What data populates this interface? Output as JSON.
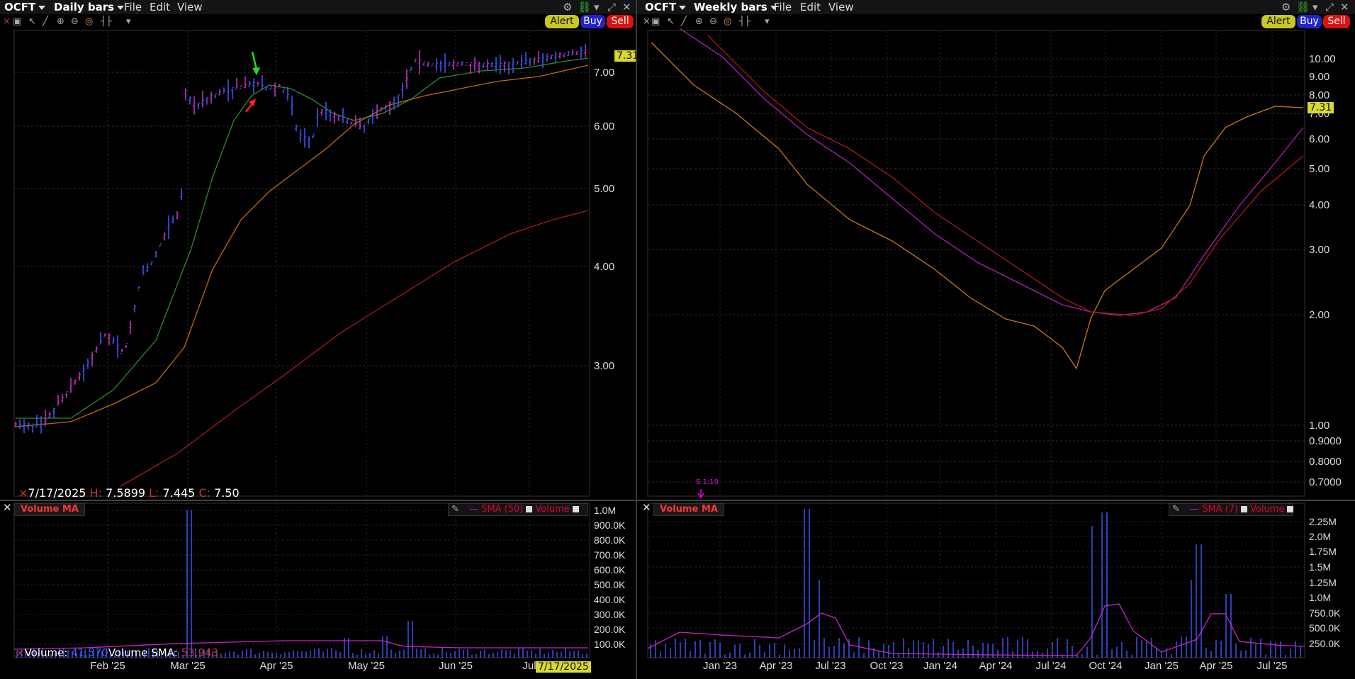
{
  "left": {
    "symbol": "OCFT",
    "bar_type": "Daily bars",
    "menu": [
      "File",
      "Edit",
      "View"
    ],
    "buttons": {
      "alert": "Alert",
      "buy": "Buy",
      "sell": "Sell"
    },
    "price_axis": [
      "7.00",
      "6.00",
      "5.00",
      "4.00",
      "3.00"
    ],
    "last_price": "7.31",
    "info_line": {
      "date": "7/17/2025",
      "h_label": "H:",
      "h": "7.5899",
      "l_label": "L:",
      "l": "7.445",
      "c_label": "C:",
      "c": "7.50"
    },
    "volume_panel": {
      "title": "Volume MA",
      "legend": {
        "sma": "SMA (50)",
        "volume": "Volume"
      },
      "axis": [
        "1.0M",
        "900.0K",
        "800.0K",
        "700.0K",
        "600.0K",
        "500.0K",
        "400.0K",
        "300.0K",
        "200.0K",
        "100.0K"
      ],
      "readout": {
        "vol_label": "Volume:",
        "vol": "41,570",
        "sma_label": "Volume SMA:",
        "sma": "53,943"
      }
    },
    "time_axis": [
      "Feb '25",
      "Mar '25",
      "Apr '25",
      "May '25",
      "Jun '25",
      "Jul"
    ],
    "date_flag": "7/17/2025",
    "colors": {
      "bar_up": "#3d5bff",
      "bar_down": "#cc33cc",
      "ma_short": "#2e8b2e",
      "ma_mid": "#c06a10",
      "ma_long": "#b01818",
      "annotation_green": "#22dd22",
      "annotation_red": "#ff2222"
    }
  },
  "right": {
    "symbol": "OCFT",
    "bar_type": "Weekly bars",
    "menu": [
      "File",
      "Edit",
      "View"
    ],
    "buttons": {
      "alert": "Alert",
      "buy": "Buy",
      "sell": "Sell"
    },
    "price_axis": [
      "10.00",
      "9.00",
      "8.00",
      "7.00",
      "6.00",
      "5.00",
      "4.00",
      "3.00",
      "2.00",
      "1.00",
      "0.9000",
      "0.8000",
      "0.7000"
    ],
    "last_price": "7.31",
    "split_marker": "S 1:10",
    "volume_panel": {
      "title": "Volume MA",
      "legend": {
        "sma": "SMA (7)",
        "volume": "Volume"
      },
      "axis": [
        "2.25M",
        "2.0M",
        "1.75M",
        "1.5M",
        "1.25M",
        "1.0M",
        "750.0K",
        "500.0K",
        "250.0K"
      ]
    },
    "time_axis": [
      "Jan '23",
      "Apr '23",
      "Jul '23",
      "Oct '23",
      "Jan '24",
      "Apr '24",
      "Jul '24",
      "Oct '24",
      "Jan '25",
      "Apr '25",
      "Jul '25"
    ],
    "colors": {
      "ma_short": "#c87a10",
      "ma_mid": "#b020b0",
      "ma_long": "#b01818"
    }
  }
}
